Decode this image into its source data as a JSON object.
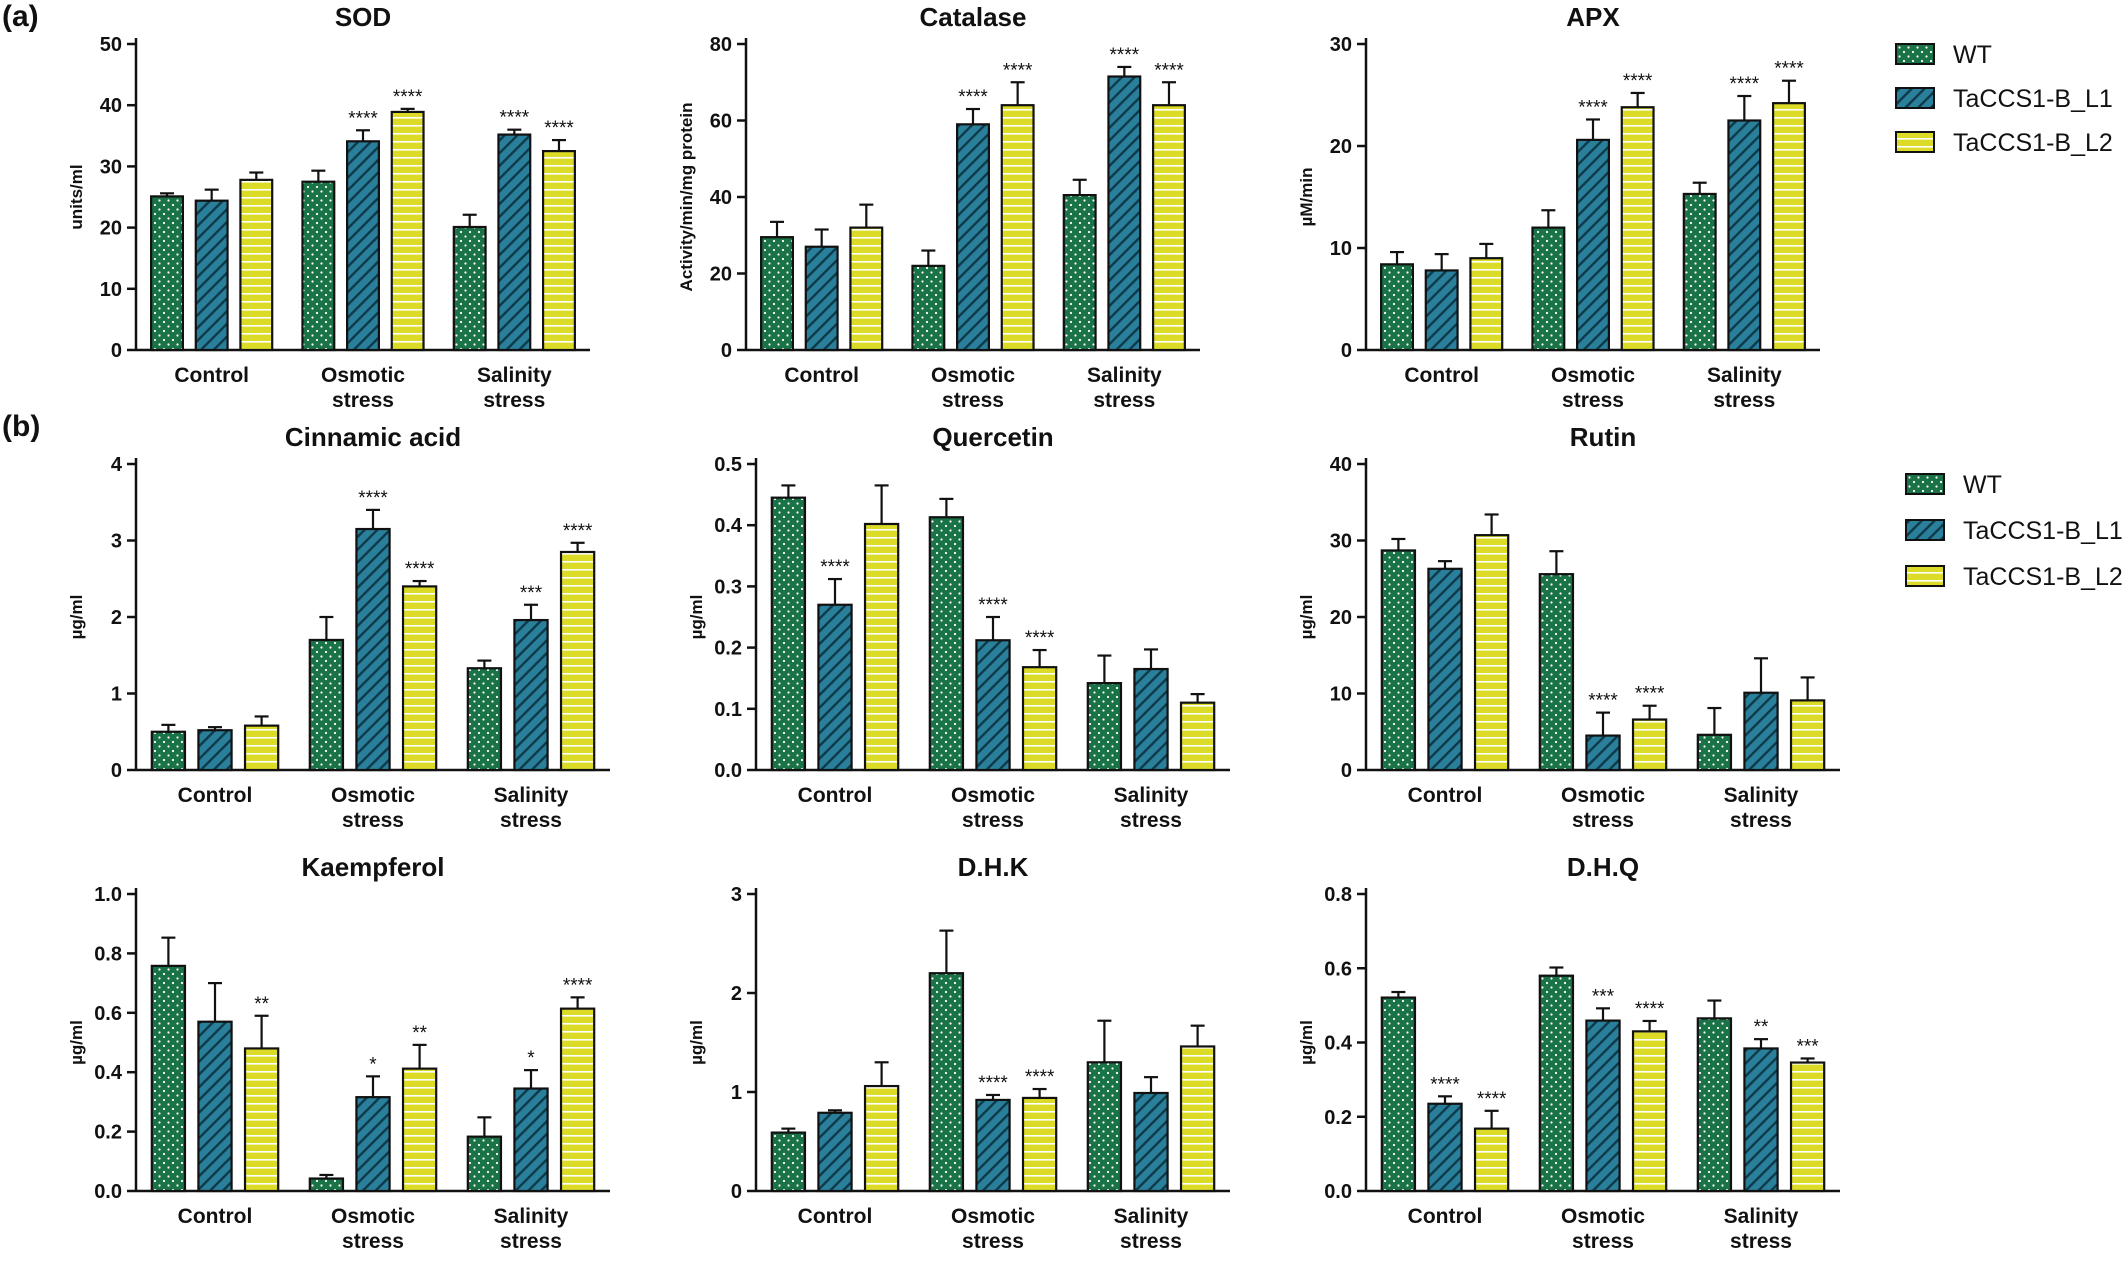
{
  "panel_labels": {
    "a": "(a)",
    "b": "(b)"
  },
  "colors": {
    "WT": "#1a7247",
    "TaCCS1-B_L1": "#2a7f9a",
    "TaCCS1-B_L2": "#dcdc28"
  },
  "legend_a": [
    "WT",
    "TaCCS1-B_L1",
    "TaCCS1-B_L2"
  ],
  "legend_b": [
    "WT",
    "TaCCS1-B_L1",
    "TaCCS1-B_L2"
  ],
  "chart_data": [
    {
      "type": "bar",
      "title": "SOD",
      "ylabel": "units/ml",
      "ylim": [
        0,
        50
      ],
      "yticks": [
        0,
        10,
        20,
        30,
        40,
        50
      ],
      "categories": [
        [
          "Control"
        ],
        [
          "Osmotic",
          "stress"
        ],
        [
          "Salinity",
          "stress"
        ]
      ],
      "series": [
        {
          "name": "WT",
          "values": [
            25.1,
            27.5,
            20.1
          ],
          "errors": [
            0.5,
            1.8,
            2.0
          ],
          "sig": [
            "",
            "",
            ""
          ]
        },
        {
          "name": "TaCCS1-B_L1",
          "values": [
            24.4,
            34.1,
            35.2
          ],
          "errors": [
            1.8,
            1.8,
            0.8
          ],
          "sig": [
            "",
            "****",
            "****"
          ]
        },
        {
          "name": "TaCCS1-B_L2",
          "values": [
            27.8,
            38.9,
            32.5
          ],
          "errors": [
            1.2,
            0.5,
            1.8
          ],
          "sig": [
            "",
            "****",
            "****"
          ]
        }
      ]
    },
    {
      "type": "bar",
      "title": "Catalase",
      "ylabel": "Activity/min/mg protein",
      "ylim": [
        0,
        80
      ],
      "yticks": [
        0,
        20,
        40,
        60,
        80
      ],
      "categories": [
        [
          "Control"
        ],
        [
          "Osmotic",
          "stress"
        ],
        [
          "Salinity",
          "stress"
        ]
      ],
      "series": [
        {
          "name": "WT",
          "values": [
            29.5,
            22.0,
            40.5
          ],
          "errors": [
            4.0,
            4.0,
            4.0
          ],
          "sig": [
            "",
            "",
            ""
          ]
        },
        {
          "name": "TaCCS1-B_L1",
          "values": [
            27.0,
            59.0,
            71.5
          ],
          "errors": [
            4.5,
            4.0,
            2.5
          ],
          "sig": [
            "",
            "****",
            "****"
          ]
        },
        {
          "name": "TaCCS1-B_L2",
          "values": [
            32.0,
            64.0,
            64.0
          ],
          "errors": [
            6.0,
            6.0,
            6.0
          ],
          "sig": [
            "",
            "****",
            "****"
          ]
        }
      ]
    },
    {
      "type": "bar",
      "title": "APX",
      "ylabel": "µM/min",
      "ylim": [
        0,
        30
      ],
      "yticks": [
        0,
        10,
        20,
        30
      ],
      "categories": [
        [
          "Control"
        ],
        [
          "Osmotic",
          "stress"
        ],
        [
          "Salinity",
          "stress"
        ]
      ],
      "series": [
        {
          "name": "WT",
          "values": [
            8.4,
            12.0,
            15.3
          ],
          "errors": [
            1.2,
            1.7,
            1.1
          ],
          "sig": [
            "",
            "",
            ""
          ]
        },
        {
          "name": "TaCCS1-B_L1",
          "values": [
            7.8,
            20.6,
            22.5
          ],
          "errors": [
            1.6,
            2.0,
            2.4
          ],
          "sig": [
            "",
            "****",
            "****"
          ]
        },
        {
          "name": "TaCCS1-B_L2",
          "values": [
            9.0,
            23.8,
            24.2
          ],
          "errors": [
            1.4,
            1.4,
            2.2
          ],
          "sig": [
            "",
            "****",
            "****"
          ]
        }
      ]
    },
    {
      "type": "bar",
      "title": "Cinnamic acid",
      "ylabel": "µg/ml",
      "ylim": [
        0,
        4
      ],
      "yticks": [
        0,
        1,
        2,
        3,
        4
      ],
      "categories": [
        [
          "Control"
        ],
        [
          "Osmotic",
          "stress"
        ],
        [
          "Salinity",
          "stress"
        ]
      ],
      "series": [
        {
          "name": "WT",
          "values": [
            0.5,
            1.7,
            1.33
          ],
          "errors": [
            0.09,
            0.3,
            0.1
          ],
          "sig": [
            "",
            "",
            ""
          ]
        },
        {
          "name": "TaCCS1-B_L1",
          "values": [
            0.52,
            3.15,
            1.96
          ],
          "errors": [
            0.04,
            0.25,
            0.2
          ],
          "sig": [
            "",
            "****",
            "***"
          ]
        },
        {
          "name": "TaCCS1-B_L2",
          "values": [
            0.58,
            2.4,
            2.85
          ],
          "errors": [
            0.12,
            0.07,
            0.12
          ],
          "sig": [
            "",
            "****",
            "****"
          ]
        }
      ]
    },
    {
      "type": "bar",
      "title": "Quercetin",
      "ylabel": "µg/ml",
      "ylim": [
        0,
        0.5
      ],
      "yticks": [
        0.0,
        0.1,
        0.2,
        0.3,
        0.4,
        0.5
      ],
      "categories": [
        [
          "Control"
        ],
        [
          "Osmotic",
          "stress"
        ],
        [
          "Salinity",
          "stress"
        ]
      ],
      "series": [
        {
          "name": "WT",
          "values": [
            0.445,
            0.413,
            0.142
          ],
          "errors": [
            0.02,
            0.03,
            0.045
          ],
          "sig": [
            "",
            "",
            ""
          ]
        },
        {
          "name": "TaCCS1-B_L1",
          "values": [
            0.27,
            0.212,
            0.165
          ],
          "errors": [
            0.042,
            0.038,
            0.032
          ],
          "sig": [
            "****",
            "****",
            ""
          ]
        },
        {
          "name": "TaCCS1-B_L2",
          "values": [
            0.402,
            0.168,
            0.11
          ],
          "errors": [
            0.063,
            0.028,
            0.014
          ],
          "sig": [
            "",
            "****",
            ""
          ]
        }
      ]
    },
    {
      "type": "bar",
      "title": "Rutin",
      "ylabel": "µg/ml",
      "ylim": [
        0,
        40
      ],
      "yticks": [
        0,
        10,
        20,
        30,
        40
      ],
      "categories": [
        [
          "Control"
        ],
        [
          "Osmotic",
          "stress"
        ],
        [
          "Salinity",
          "stress"
        ]
      ],
      "series": [
        {
          "name": "WT",
          "values": [
            28.7,
            25.6,
            4.6
          ],
          "errors": [
            1.5,
            3.0,
            3.5
          ],
          "sig": [
            "",
            "",
            ""
          ]
        },
        {
          "name": "TaCCS1-B_L1",
          "values": [
            26.3,
            4.5,
            10.1
          ],
          "errors": [
            1.0,
            3.0,
            4.5
          ],
          "sig": [
            "",
            "****",
            ""
          ]
        },
        {
          "name": "TaCCS1-B_L2",
          "values": [
            30.7,
            6.6,
            9.1
          ],
          "errors": [
            2.7,
            1.8,
            3.0
          ],
          "sig": [
            "",
            "****",
            ""
          ]
        }
      ]
    },
    {
      "type": "bar",
      "title": "Kaempferol",
      "ylabel": "µg/ml",
      "ylim": [
        0,
        1.0
      ],
      "yticks": [
        0.0,
        0.2,
        0.4,
        0.6,
        0.8,
        1.0
      ],
      "categories": [
        [
          "Control"
        ],
        [
          "Osmotic",
          "stress"
        ],
        [
          "Salinity",
          "stress"
        ]
      ],
      "series": [
        {
          "name": "WT",
          "values": [
            0.758,
            0.042,
            0.183
          ],
          "errors": [
            0.095,
            0.012,
            0.065
          ],
          "sig": [
            "",
            "",
            ""
          ]
        },
        {
          "name": "TaCCS1-B_L1",
          "values": [
            0.57,
            0.316,
            0.345
          ],
          "errors": [
            0.13,
            0.07,
            0.062
          ],
          "sig": [
            "",
            "*",
            "*"
          ]
        },
        {
          "name": "TaCCS1-B_L2",
          "values": [
            0.48,
            0.412,
            0.614
          ],
          "errors": [
            0.11,
            0.08,
            0.038
          ],
          "sig": [
            "**",
            "**",
            "****"
          ]
        }
      ]
    },
    {
      "type": "bar",
      "title": "D.H.K",
      "ylabel": "µg/ml",
      "ylim": [
        0,
        3
      ],
      "yticks": [
        0,
        1,
        2,
        3
      ],
      "categories": [
        [
          "Control"
        ],
        [
          "Osmotic",
          "stress"
        ],
        [
          "Salinity",
          "stress"
        ]
      ],
      "series": [
        {
          "name": "WT",
          "values": [
            0.59,
            2.2,
            1.3
          ],
          "errors": [
            0.04,
            0.43,
            0.42
          ],
          "sig": [
            "",
            "",
            ""
          ]
        },
        {
          "name": "TaCCS1-B_L1",
          "values": [
            0.79,
            0.92,
            0.99
          ],
          "errors": [
            0.025,
            0.05,
            0.16
          ],
          "sig": [
            "",
            "****",
            ""
          ]
        },
        {
          "name": "TaCCS1-B_L2",
          "values": [
            1.06,
            0.94,
            1.46
          ],
          "errors": [
            0.24,
            0.09,
            0.21
          ],
          "sig": [
            "",
            "****",
            ""
          ]
        }
      ]
    },
    {
      "type": "bar",
      "title": "D.H.Q",
      "ylabel": "µg/ml",
      "ylim": [
        0,
        0.8
      ],
      "yticks": [
        0.0,
        0.2,
        0.4,
        0.6,
        0.8
      ],
      "categories": [
        [
          "Control"
        ],
        [
          "Osmotic",
          "stress"
        ],
        [
          "Salinity",
          "stress"
        ]
      ],
      "series": [
        {
          "name": "WT",
          "values": [
            0.521,
            0.58,
            0.465
          ],
          "errors": [
            0.015,
            0.022,
            0.048
          ],
          "sig": [
            "",
            "",
            ""
          ]
        },
        {
          "name": "TaCCS1-B_L1",
          "values": [
            0.235,
            0.459,
            0.384
          ],
          "errors": [
            0.02,
            0.033,
            0.025
          ],
          "sig": [
            "****",
            "***",
            "**"
          ]
        },
        {
          "name": "TaCCS1-B_L2",
          "values": [
            0.168,
            0.43,
            0.346
          ],
          "errors": [
            0.048,
            0.028,
            0.011
          ],
          "sig": [
            "****",
            "****",
            "***"
          ]
        }
      ]
    }
  ]
}
